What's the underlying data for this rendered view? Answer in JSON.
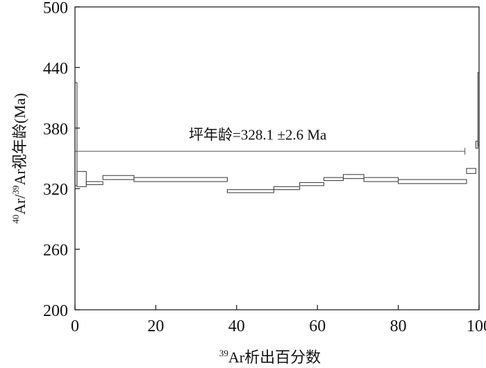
{
  "chart_data": {
    "type": "step",
    "xlabel_sup": "39",
    "xlabel": "Ar析出百分数",
    "ylabel_sup1": "40",
    "ylabel_sup2": "39",
    "ylabel_part1": "Ar/",
    "ylabel_part2": "Ar视年龄(Ma)",
    "xlim": [
      0,
      100
    ],
    "ylim": [
      200,
      500
    ],
    "xticks": [
      0,
      20,
      40,
      60,
      80,
      100
    ],
    "yticks": [
      200,
      260,
      320,
      380,
      440,
      500
    ],
    "grid": false,
    "plateau": {
      "label": "坪年龄=328.1 ±2.6 Ma",
      "age": 357,
      "x_start": 0,
      "x_end": 96.5
    },
    "steps": [
      {
        "x0": 0.0,
        "x1": 0.5,
        "lo": 323,
        "hi": 425
      },
      {
        "x0": 0.5,
        "x1": 2.8,
        "lo": 322,
        "hi": 337
      },
      {
        "x0": 2.8,
        "x1": 6.9,
        "lo": 324,
        "hi": 327
      },
      {
        "x0": 6.9,
        "x1": 14.6,
        "lo": 329,
        "hi": 333
      },
      {
        "x0": 14.6,
        "x1": 37.7,
        "lo": 327,
        "hi": 331
      },
      {
        "x0": 37.7,
        "x1": 49.2,
        "lo": 316,
        "hi": 319
      },
      {
        "x0": 49.2,
        "x1": 55.6,
        "lo": 319,
        "hi": 322
      },
      {
        "x0": 55.6,
        "x1": 61.6,
        "lo": 323,
        "hi": 326
      },
      {
        "x0": 61.6,
        "x1": 66.4,
        "lo": 328,
        "hi": 331
      },
      {
        "x0": 66.4,
        "x1": 71.5,
        "lo": 330,
        "hi": 334
      },
      {
        "x0": 71.5,
        "x1": 80.0,
        "lo": 327,
        "hi": 331
      },
      {
        "x0": 80.0,
        "x1": 96.9,
        "lo": 325,
        "hi": 329
      },
      {
        "x0": 96.9,
        "x1": 99.2,
        "lo": 335,
        "hi": 340
      },
      {
        "x0": 99.2,
        "x1": 99.7,
        "lo": 360,
        "hi": 367
      },
      {
        "x0": 99.7,
        "x1": 100.0,
        "lo": 363,
        "hi": 435
      }
    ]
  }
}
